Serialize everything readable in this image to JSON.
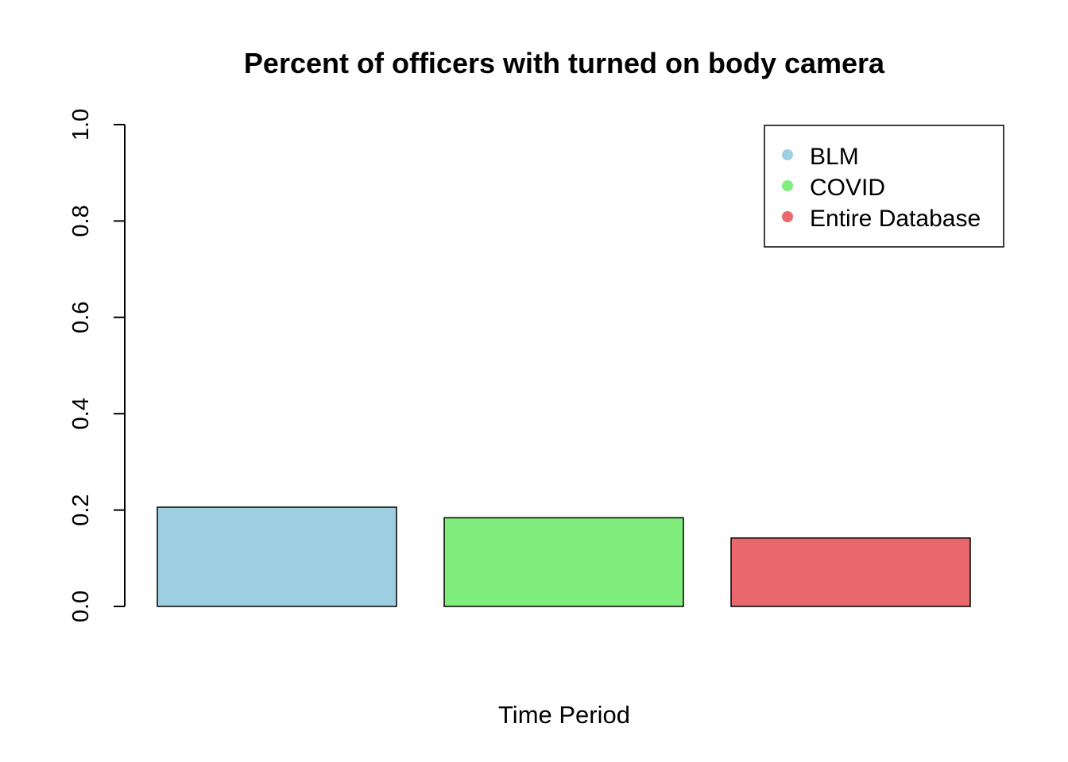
{
  "chart_data": {
    "type": "bar",
    "title": "Percent of officers with turned on body camera",
    "xlabel": "Time Period",
    "ylabel": "",
    "ylim": [
      0,
      1
    ],
    "y_ticks": [
      "0.0",
      "0.2",
      "0.4",
      "0.6",
      "0.8",
      "1.0"
    ],
    "categories": [
      "BLM",
      "COVID",
      "Entire Database"
    ],
    "values": [
      0.206,
      0.184,
      0.142
    ],
    "colors": [
      "#9ECFE0",
      "#80EE7D",
      "#E9686D"
    ],
    "legend": {
      "position": "top-right",
      "entries": [
        "BLM",
        "COVID",
        "Entire Database"
      ]
    },
    "grid": false
  }
}
